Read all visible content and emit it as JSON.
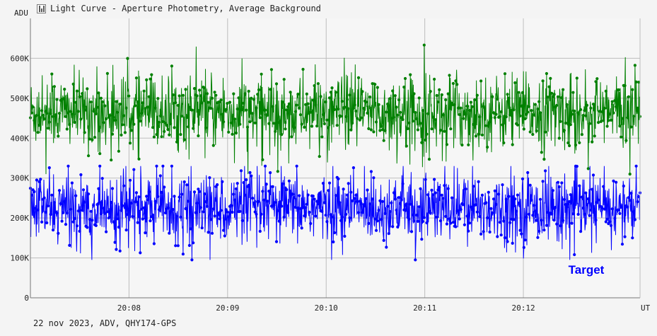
{
  "window": {
    "title": "Light Curve - Aperture Photometry, Average Background",
    "icon": "light-curve-icon"
  },
  "footer": {
    "text": "22 nov 2023, ADV, QHY174-GPS"
  },
  "chart_data": {
    "type": "line",
    "ylabel": "ADU",
    "xlabel": "UT",
    "ylim": [
      0,
      700000
    ],
    "y_ticks": [
      {
        "value": 0,
        "label": "0"
      },
      {
        "value": 100000,
        "label": "100K"
      },
      {
        "value": 200000,
        "label": "200K"
      },
      {
        "value": 300000,
        "label": "300K"
      },
      {
        "value": 400000,
        "label": "400K"
      },
      {
        "value": 500000,
        "label": "500K"
      },
      {
        "value": 600000,
        "label": "600K"
      }
    ],
    "x_range_seconds": [
      0,
      371
    ],
    "x_ticks": [
      {
        "value": 60,
        "label": "20:08"
      },
      {
        "value": 120,
        "label": "20:09"
      },
      {
        "value": 180,
        "label": "20:10"
      },
      {
        "value": 240,
        "label": "20:11"
      },
      {
        "value": 300,
        "label": "20:12"
      }
    ],
    "grid": true,
    "series": [
      {
        "name": "",
        "color": "#008000",
        "mean": 465000,
        "stdev": 45000,
        "range": [
          310000,
          660000
        ]
      },
      {
        "name": "Target",
        "color": "#0000ff",
        "mean": 225000,
        "stdev": 42000,
        "range": [
          95000,
          330000
        ]
      }
    ],
    "legend": {
      "entries": [
        {
          "label": "Target",
          "color": "#0000ff",
          "position": "bottom-right"
        }
      ]
    }
  }
}
